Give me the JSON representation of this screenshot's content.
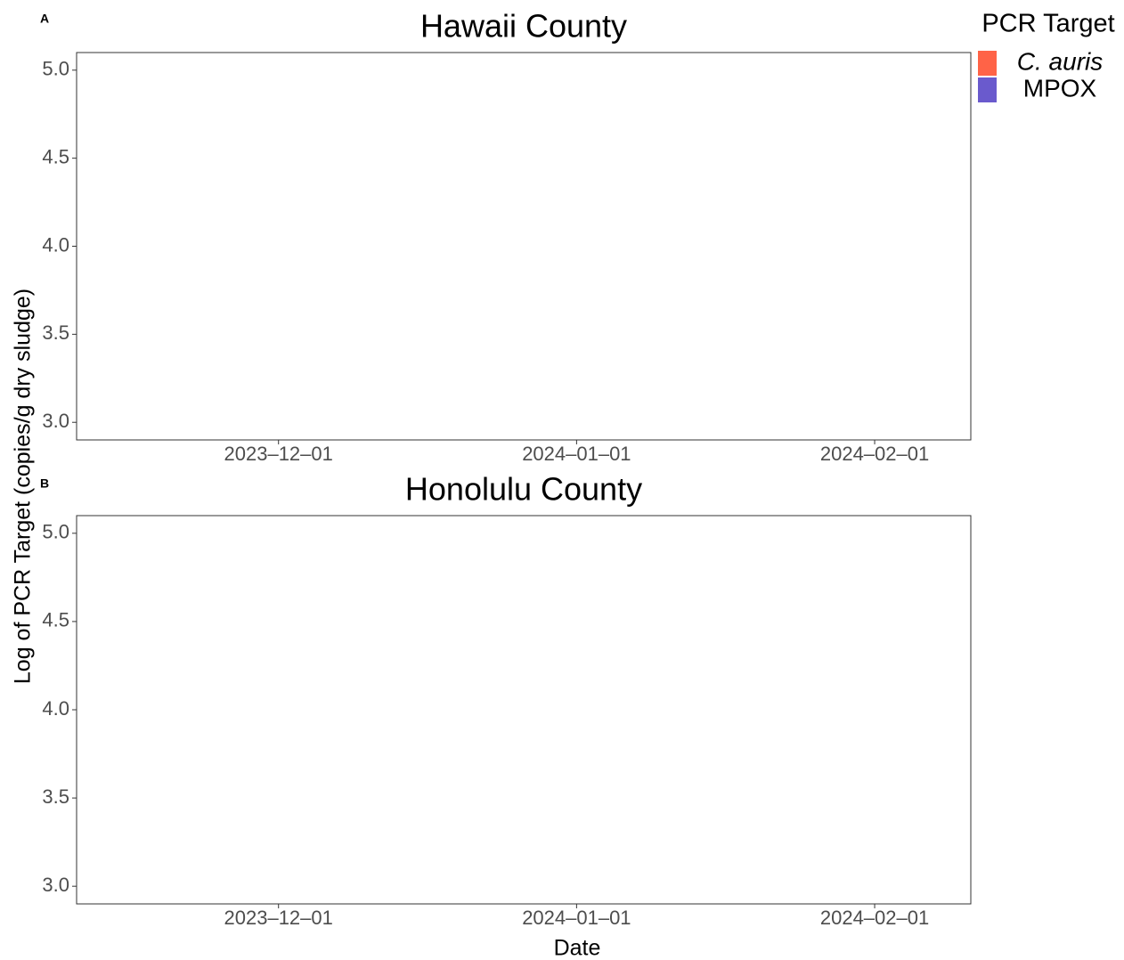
{
  "chart_data": [
    {
      "type": "bar",
      "panel_label": "A",
      "title": "Hawaii County",
      "xlim": [
        "2023-11-10",
        "2024-02-11"
      ],
      "xticks": [
        {
          "value": "2023-12-01",
          "label": "2023–12–01"
        },
        {
          "value": "2024-01-01",
          "label": "2024–01–01"
        },
        {
          "value": "2024-02-01",
          "label": "2024–02–01"
        }
      ],
      "ylim": [
        2.9,
        5.1
      ],
      "yticks": [
        {
          "value": 3,
          "label": "3.0"
        },
        3.5,
        {
          "value": 4,
          "label": "4.0"
        },
        4.5,
        {
          "value": 5,
          "label": "5.0"
        }
      ]
    },
    {
      "type": "bar",
      "panel_label": "B",
      "title": "Honolulu County",
      "xlim": [
        "2023-11-10",
        "2024-02-11"
      ],
      "xticks": [
        {
          "value": "2023-12-01",
          "label": "2023–12–01"
        },
        {
          "value": "2024-01-01",
          "label": "2024–01–01"
        },
        {
          "value": "2024-02-01",
          "label": "2024–02–01"
        }
      ],
      "ylim": [
        2.9,
        5.1
      ],
      "yticks": [
        {
          "value": 3,
          "label": "3.0"
        },
        3.5,
        {
          "value": 4,
          "label": "4.0"
        },
        4.5,
        {
          "value": 5,
          "label": "5.0"
        }
      ]
    }
  ],
  "x_label": "Date",
  "y_label": "Log of PCR Target (copies/g dry sludge)",
  "legend": {
    "title": "PCR Target",
    "items": [
      {
        "name": "C. auris",
        "color": "#ff6347",
        "italic": true
      },
      {
        "name": "MPOX",
        "color": "#6a5acd",
        "italic": false
      }
    ]
  }
}
